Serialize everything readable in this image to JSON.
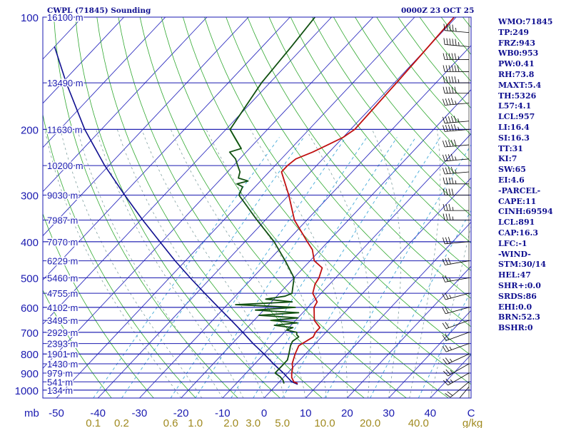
{
  "header": {
    "station": "CWPL (71845) Sounding",
    "time": "0000Z 23 OCT 25"
  },
  "indices": [
    "WMO:71845",
    "TP:249",
    "FRZ:943",
    "WB0:953",
    "PW:0.41",
    "RH:73.8",
    "MAXT:5.4",
    "TH:5326",
    "L57:4.1",
    "LCL:957",
    "LI:16.4",
    "SI:16.3",
    "TT:31",
    "KI:7",
    "SW:65",
    "EI:4.6",
    "-PARCEL-",
    "CAPE:11",
    "CINH:69594",
    "LCL:891",
    "CAP:16.3",
    "LFC:-1",
    "-WIND-",
    "STM:30/14",
    "HEL:47",
    "SHR+:0.0",
    "SRDS:86",
    "EHI:0.0",
    "BRN:52.3",
    "BSHR:0"
  ],
  "colors": {
    "isobar": "#1a1ab0",
    "isotherm": "#3030c0",
    "dry_adiabat": "#30a830",
    "moist_adiabat": "#80a0a0",
    "mixing_ratio": "#40a8d8",
    "temperature": "#c01010",
    "dewpoint": "#105010",
    "parcel": "#101090",
    "axis_text": "#1a1ab0",
    "mixratio_text": "#a08a20",
    "wind": "#000000"
  },
  "chart_data": {
    "type": "line",
    "title": "CWPL (71845) Sounding",
    "pressure_levels_mb": [
      100,
      200,
      300,
      400,
      500,
      600,
      700,
      800,
      900,
      1000
    ],
    "pressure_unit": "mb",
    "height_labels": [
      {
        "p": 100,
        "label": "16100 m"
      },
      {
        "p": 150,
        "label": "13490 m"
      },
      {
        "p": 200,
        "label": "11630 m"
      },
      {
        "p": 250,
        "label": "10200 m"
      },
      {
        "p": 300,
        "label": "9030 m"
      },
      {
        "p": 350,
        "label": "7987 m"
      },
      {
        "p": 400,
        "label": "7070 m"
      },
      {
        "p": 450,
        "label": "6229 m"
      },
      {
        "p": 500,
        "label": "5460 m"
      },
      {
        "p": 550,
        "label": "4755 m"
      },
      {
        "p": 600,
        "label": "4102 m"
      },
      {
        "p": 650,
        "label": "3495 m"
      },
      {
        "p": 700,
        "label": "2929 m"
      },
      {
        "p": 750,
        "label": "2393 m"
      },
      {
        "p": 800,
        "label": "1901 m"
      },
      {
        "p": 850,
        "label": "1430 m"
      },
      {
        "p": 900,
        "label": "979 m"
      },
      {
        "p": 950,
        "label": "541 m"
      },
      {
        "p": 1000,
        "label": "134 m"
      }
    ],
    "temperature_axis": [
      {
        "value": -50,
        "label": "-50"
      },
      {
        "value": -40,
        "label": "-40"
      },
      {
        "value": -30,
        "label": "-30"
      },
      {
        "value": -20,
        "label": "-20"
      },
      {
        "value": -10,
        "label": "-10"
      },
      {
        "value": 0,
        "label": "0"
      },
      {
        "value": 10,
        "label": "10"
      },
      {
        "value": 20,
        "label": "20"
      },
      {
        "value": 30,
        "label": "30"
      },
      {
        "value": 40,
        "label": "40"
      }
    ],
    "temperature_unit": "C",
    "mixing_ratios": [
      {
        "value": 0.1,
        "label": "0.1"
      },
      {
        "value": 0.2,
        "label": "0.2"
      },
      {
        "value": 0.6,
        "label": "0.6"
      },
      {
        "value": 1.0,
        "label": "1.0"
      },
      {
        "value": 2.0,
        "label": "2.0"
      },
      {
        "value": 3.0,
        "label": "3.0"
      },
      {
        "value": 5.0,
        "label": "5.0"
      },
      {
        "value": 10.0,
        "label": "10.0"
      },
      {
        "value": 20.0,
        "label": "20.0"
      },
      {
        "value": 40.0,
        "label": "40.0"
      }
    ],
    "mixing_ratio_unit": "g/kg",
    "temperature_profile": [
      [
        960,
        4.8
      ],
      [
        950,
        3.5
      ],
      [
        925,
        2.0
      ],
      [
        900,
        1.0
      ],
      [
        870,
        0.0
      ],
      [
        850,
        -1.0
      ],
      [
        800,
        -2.5
      ],
      [
        760,
        -3.5
      ],
      [
        720,
        -2.0
      ],
      [
        700,
        -2.5
      ],
      [
        680,
        -2.5
      ],
      [
        650,
        -5.5
      ],
      [
        600,
        -8.5
      ],
      [
        580,
        -9.0
      ],
      [
        550,
        -12.0
      ],
      [
        520,
        -13.5
      ],
      [
        500,
        -14.0
      ],
      [
        470,
        -15.5
      ],
      [
        450,
        -19.0
      ],
      [
        420,
        -22.0
      ],
      [
        400,
        -25.0
      ],
      [
        350,
        -33.0
      ],
      [
        300,
        -40.0
      ],
      [
        260,
        -47.0
      ],
      [
        250,
        -47.0
      ],
      [
        240,
        -46.5
      ],
      [
        230,
        -44.0
      ],
      [
        220,
        -42.0
      ],
      [
        210,
        -40.0
      ],
      [
        200,
        -39.0
      ],
      [
        150,
        -39.5
      ],
      [
        120,
        -40.0
      ],
      [
        100,
        -40.5
      ]
    ],
    "dewpoint_profile": [
      [
        960,
        1.5
      ],
      [
        940,
        0.5
      ],
      [
        920,
        -1.0
      ],
      [
        900,
        -3.0
      ],
      [
        880,
        -3.0
      ],
      [
        860,
        -3.0
      ],
      [
        830,
        -3.0
      ],
      [
        800,
        -4.0
      ],
      [
        760,
        -5.5
      ],
      [
        740,
        -6.0
      ],
      [
        720,
        -5.5
      ],
      [
        710,
        -6.5
      ],
      [
        700,
        -7.0
      ],
      [
        690,
        -10.0
      ],
      [
        680,
        -9.0
      ],
      [
        670,
        -14.0
      ],
      [
        660,
        -9.0
      ],
      [
        650,
        -16.0
      ],
      [
        640,
        -10.0
      ],
      [
        630,
        -20.0
      ],
      [
        620,
        -11.0
      ],
      [
        610,
        -22.0
      ],
      [
        600,
        -13.0
      ],
      [
        590,
        -28.0
      ],
      [
        580,
        -15.0
      ],
      [
        570,
        -22.0
      ],
      [
        560,
        -18.0
      ],
      [
        550,
        -17.0
      ],
      [
        500,
        -20.0
      ],
      [
        450,
        -26.0
      ],
      [
        400,
        -33.0
      ],
      [
        350,
        -42.0
      ],
      [
        300,
        -52.0
      ],
      [
        285,
        -53.0
      ],
      [
        280,
        -55.0
      ],
      [
        275,
        -53.0
      ],
      [
        270,
        -56.0
      ],
      [
        260,
        -57.0
      ],
      [
        250,
        -59.0
      ],
      [
        240,
        -61.0
      ],
      [
        230,
        -64.0
      ],
      [
        225,
        -62.0
      ],
      [
        200,
        -69.0
      ],
      [
        150,
        -72.0
      ],
      [
        120,
        -73.0
      ],
      [
        100,
        -74.0
      ]
    ],
    "parcel_profile": [
      [
        965,
        5.0
      ],
      [
        950,
        3.0
      ],
      [
        900,
        -1.0
      ],
      [
        850,
        -5.5
      ],
      [
        800,
        -10.0
      ],
      [
        750,
        -15.0
      ],
      [
        700,
        -20.0
      ],
      [
        650,
        -25.5
      ],
      [
        600,
        -31.5
      ],
      [
        550,
        -38.0
      ],
      [
        500,
        -45.0
      ],
      [
        450,
        -52.5
      ],
      [
        400,
        -60.5
      ],
      [
        350,
        -69.5
      ],
      [
        300,
        -79.5
      ],
      [
        250,
        -91.0
      ],
      [
        200,
        -104.0
      ],
      [
        150,
        -119.0
      ],
      [
        120,
        -130.0
      ]
    ],
    "wind_profile": [
      [
        100,
        270,
        30
      ],
      [
        110,
        275,
        45
      ],
      [
        120,
        275,
        55
      ],
      [
        130,
        270,
        55
      ],
      [
        140,
        270,
        60
      ],
      [
        150,
        270,
        55
      ],
      [
        160,
        270,
        50
      ],
      [
        170,
        265,
        45
      ],
      [
        190,
        265,
        55
      ],
      [
        200,
        265,
        55
      ],
      [
        220,
        265,
        50
      ],
      [
        240,
        265,
        45
      ],
      [
        260,
        265,
        45
      ],
      [
        280,
        270,
        45
      ],
      [
        300,
        270,
        40
      ],
      [
        330,
        270,
        35
      ],
      [
        350,
        270,
        35
      ],
      [
        400,
        265,
        30
      ],
      [
        450,
        260,
        30
      ],
      [
        500,
        260,
        25
      ],
      [
        550,
        255,
        25
      ],
      [
        600,
        255,
        20
      ],
      [
        650,
        250,
        20
      ],
      [
        700,
        250,
        20
      ],
      [
        750,
        250,
        25
      ],
      [
        800,
        245,
        25
      ],
      [
        850,
        240,
        25
      ],
      [
        900,
        240,
        25
      ],
      [
        950,
        230,
        20
      ],
      [
        980,
        220,
        15
      ]
    ]
  }
}
